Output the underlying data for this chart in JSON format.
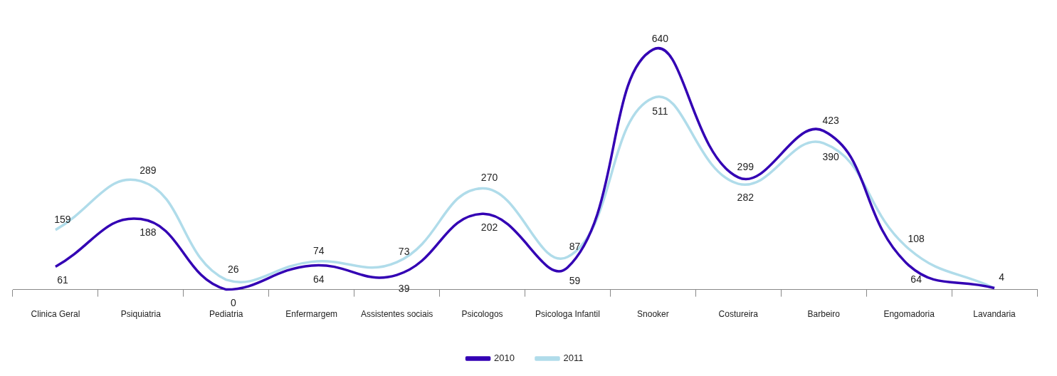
{
  "chart_data": {
    "type": "line",
    "categories": [
      "Clinica Geral",
      "Psiquiatria",
      "Pediatria",
      "Enfermargem",
      "Assistentes sociais",
      "Psicologos",
      "Psicologa Infantil",
      "Snooker",
      "Costureira",
      "Barbeiro",
      "Engomadoria",
      "Lavandaria"
    ],
    "series": [
      {
        "name": "2010",
        "color": "#3300b4",
        "values": [
          61,
          188,
          0,
          64,
          39,
          202,
          59,
          640,
          299,
          423,
          64,
          4
        ],
        "value_labels": [
          "61",
          "188",
          "0",
          "64",
          "39",
          "202",
          "59",
          "640",
          "299",
          "423",
          "64",
          null
        ]
      },
      {
        "name": "2011",
        "color": "#b0dcea",
        "values": [
          159,
          289,
          26,
          74,
          73,
          270,
          87,
          511,
          282,
          390,
          108,
          4
        ],
        "value_labels": [
          "159",
          "289",
          "26",
          "74",
          "73",
          "270",
          "87",
          "511",
          "282",
          "390",
          "108",
          "4"
        ]
      }
    ],
    "legend": "bottom",
    "grid": false,
    "marker": "none"
  }
}
